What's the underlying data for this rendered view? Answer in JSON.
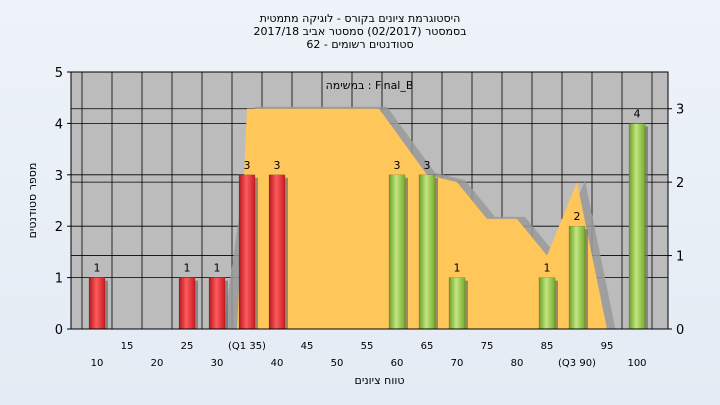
{
  "title_lines": [
    "היסטוגרמת ציונים בקורס - לוגיקה מתמטית",
    "בסמסטר  (02/2017)  סמסטר אביב 2017/18",
    "סטודנטים רשומים - 62"
  ],
  "chart_data": {
    "type": "bar",
    "inner_label": "במשימה : Final_B",
    "xlabel": "טווח ציונים",
    "ylabel": "מספר סטודנטים",
    "ylim": [
      0,
      5
    ],
    "y_ticks": [
      0,
      1,
      2,
      3,
      4,
      5
    ],
    "y2lim": [
      0,
      3.5
    ],
    "y2_ticks": [
      0,
      1,
      2,
      3
    ],
    "grid": true,
    "x_tick_labels_upper": [
      {
        "x": 15,
        "label": "15"
      },
      {
        "x": 25,
        "label": "25"
      },
      {
        "x": 35,
        "label": "(Q1 35)"
      },
      {
        "x": 45,
        "label": "45"
      },
      {
        "x": 55,
        "label": "55"
      },
      {
        "x": 65,
        "label": "65"
      },
      {
        "x": 75,
        "label": "75"
      },
      {
        "x": 85,
        "label": "85"
      },
      {
        "x": 95,
        "label": "95"
      }
    ],
    "x_tick_labels_lower": [
      {
        "x": 10,
        "label": "10"
      },
      {
        "x": 20,
        "label": "20"
      },
      {
        "x": 30,
        "label": "30"
      },
      {
        "x": 40,
        "label": "40"
      },
      {
        "x": 50,
        "label": "50"
      },
      {
        "x": 60,
        "label": "60"
      },
      {
        "x": 70,
        "label": "70"
      },
      {
        "x": 80,
        "label": "80"
      },
      {
        "x": 90,
        "label": "(Q3 90)"
      },
      {
        "x": 100,
        "label": "100"
      }
    ],
    "bars": [
      {
        "x": 10,
        "value": 1,
        "label": "1",
        "color": "red"
      },
      {
        "x": 25,
        "value": 1,
        "label": "1",
        "color": "red"
      },
      {
        "x": 30,
        "value": 1,
        "label": "1",
        "color": "red"
      },
      {
        "x": 35,
        "value": 3,
        "label": "3",
        "color": "red"
      },
      {
        "x": 40,
        "value": 3,
        "label": "3",
        "color": "red"
      },
      {
        "x": 60,
        "value": 3,
        "label": "3",
        "color": "green"
      },
      {
        "x": 65,
        "value": 3,
        "label": "3",
        "color": "green"
      },
      {
        "x": 70,
        "value": 1,
        "label": "1",
        "color": "green"
      },
      {
        "x": 85,
        "value": 1,
        "label": "1",
        "color": "green"
      },
      {
        "x": 90,
        "value": 2,
        "label": "2",
        "color": "green"
      },
      {
        "x": 100,
        "value": 4,
        "label": "4",
        "color": "green"
      }
    ],
    "area": {
      "points": [
        [
          35,
          3.0
        ],
        [
          57,
          3.0
        ],
        [
          65,
          2.1
        ],
        [
          70,
          2.0
        ],
        [
          75,
          1.5
        ],
        [
          80,
          1.5
        ],
        [
          85,
          1.0
        ],
        [
          90,
          2.0
        ],
        [
          95,
          0
        ]
      ],
      "start_x": 35,
      "fill": "#ffc65a",
      "shadow": "#9a9a9a"
    },
    "colors": {
      "plot_bg": "#bcbcbc",
      "grid": "#000000",
      "red": "#e8262b",
      "green": "#8cc63e"
    }
  }
}
